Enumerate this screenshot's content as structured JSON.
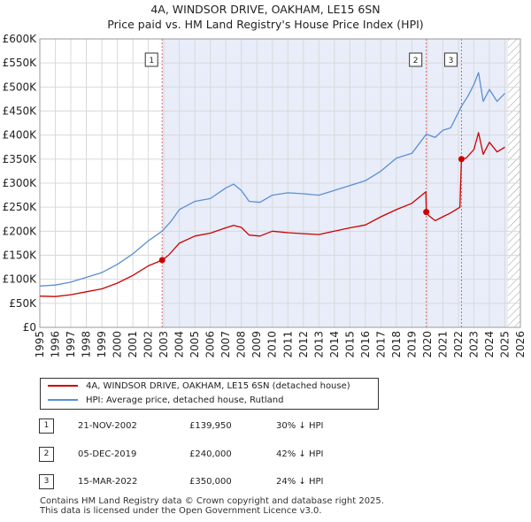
{
  "title": {
    "line1": "4A, WINDSOR DRIVE, OAKHAM, LE15 6SN",
    "line2": "Price paid vs. HM Land Registry's House Price Index (HPI)"
  },
  "colors": {
    "price_line": "#cc0000",
    "hpi_line": "#5b8fd4",
    "shade": "#e8edf9",
    "grid": "#d9d9d9",
    "hatch": "#999999",
    "sale_vline": "#dd6666"
  },
  "chart_data": {
    "type": "line",
    "title": "Price paid vs. HM Land Registry's House Price Index (HPI)",
    "xlabel": "",
    "ylabel": "",
    "xlim": [
      1995,
      2026
    ],
    "ylim": [
      0,
      600000
    ],
    "y_ticks": [
      0,
      50000,
      100000,
      150000,
      200000,
      250000,
      300000,
      350000,
      400000,
      450000,
      500000,
      550000,
      600000
    ],
    "y_tick_labels": [
      "£0",
      "£50K",
      "£100K",
      "£150K",
      "£200K",
      "£250K",
      "£300K",
      "£350K",
      "£400K",
      "£450K",
      "£500K",
      "£550K",
      "£600K"
    ],
    "x_ticks": [
      1995,
      1996,
      1997,
      1998,
      1999,
      2000,
      2001,
      2002,
      2003,
      2004,
      2005,
      2006,
      2007,
      2008,
      2009,
      2010,
      2011,
      2012,
      2013,
      2014,
      2015,
      2016,
      2017,
      2018,
      2019,
      2020,
      2021,
      2022,
      2023,
      2024,
      2025,
      2026
    ],
    "x_tick_labels": [
      "1995",
      "1996",
      "1997",
      "1998",
      "1999",
      "2000",
      "2001",
      "2002",
      "2003",
      "2004",
      "2005",
      "2006",
      "2007",
      "2008",
      "2009",
      "2010",
      "2011",
      "2012",
      "2013",
      "2014",
      "2015",
      "2016",
      "2017",
      "2018",
      "2019",
      "2020",
      "2021",
      "2022",
      "2023",
      "2024",
      "2025",
      "2026"
    ],
    "grid": true,
    "shaded_range": [
      2002.9,
      2025.2
    ],
    "hatched_range": [
      2025.2,
      2026
    ],
    "series": [
      {
        "name": "4A, WINDSOR DRIVE, OAKHAM, LE15 6SN (detached house)",
        "color": "#cc0000",
        "x": [
          1995.0,
          1996.0,
          1997.0,
          1998.0,
          1999.0,
          2000.0,
          2001.0,
          2002.0,
          2002.89,
          2003.3,
          2004.0,
          2005.0,
          2006.0,
          2007.0,
          2007.5,
          2008.0,
          2008.5,
          2009.2,
          2010.0,
          2011.0,
          2012.0,
          2013.0,
          2014.0,
          2015.0,
          2016.0,
          2017.0,
          2018.0,
          2019.0,
          2019.9,
          2019.93,
          2020.1,
          2020.5,
          2021.0,
          2021.5,
          2022.1,
          2022.2,
          2022.5,
          2023.0,
          2023.3,
          2023.6,
          2024.0,
          2024.5,
          2025.0
        ],
        "y": [
          65000,
          64000,
          68000,
          74000,
          80000,
          92000,
          108000,
          128000,
          139950,
          150000,
          175000,
          190000,
          196000,
          207000,
          212000,
          208000,
          192000,
          190000,
          200000,
          197000,
          195000,
          193000,
          200000,
          207000,
          213000,
          230000,
          245000,
          258000,
          282000,
          240000,
          232000,
          222000,
          230000,
          238000,
          250000,
          350000,
          352000,
          370000,
          405000,
          360000,
          385000,
          365000,
          375000
        ]
      },
      {
        "name": "HPI: Average price, detached house, Rutland",
        "color": "#5b8fd4",
        "x": [
          1995.0,
          1996.0,
          1997.0,
          1998.0,
          1999.0,
          2000.0,
          2001.0,
          2002.0,
          2002.89,
          2003.5,
          2004.0,
          2005.0,
          2006.0,
          2007.0,
          2007.5,
          2008.0,
          2008.5,
          2009.2,
          2010.0,
          2011.0,
          2012.0,
          2013.0,
          2014.0,
          2015.0,
          2016.0,
          2017.0,
          2018.0,
          2019.0,
          2019.93,
          2020.5,
          2021.0,
          2021.5,
          2022.2,
          2022.6,
          2023.0,
          2023.3,
          2023.6,
          2024.0,
          2024.5,
          2025.0
        ],
        "y": [
          86000,
          88000,
          94000,
          104000,
          114000,
          131000,
          153000,
          180000,
          200000,
          222000,
          245000,
          262000,
          268000,
          290000,
          298000,
          285000,
          262000,
          260000,
          275000,
          280000,
          278000,
          275000,
          285000,
          295000,
          305000,
          325000,
          352000,
          362000,
          402000,
          395000,
          410000,
          415000,
          460000,
          480000,
          505000,
          530000,
          470000,
          495000,
          470000,
          487000
        ]
      }
    ],
    "sale_markers": [
      {
        "label": "1",
        "x": 2002.89,
        "y": 139950
      },
      {
        "label": "2",
        "x": 2019.93,
        "y": 240000
      },
      {
        "label": "3",
        "x": 2022.2,
        "y": 350000
      }
    ]
  },
  "legend": {
    "price_label": "4A, WINDSOR DRIVE, OAKHAM, LE15 6SN (detached house)",
    "hpi_label": "HPI: Average price, detached house, Rutland"
  },
  "sales": [
    {
      "num": "1",
      "date": "21-NOV-2002",
      "price": "£139,950",
      "hpi": "30% ↓ HPI"
    },
    {
      "num": "2",
      "date": "05-DEC-2019",
      "price": "£240,000",
      "hpi": "42% ↓ HPI"
    },
    {
      "num": "3",
      "date": "15-MAR-2022",
      "price": "£350,000",
      "hpi": "24% ↓ HPI"
    }
  ],
  "footer": {
    "line1": "Contains HM Land Registry data © Crown copyright and database right 2025.",
    "line2": "This data is licensed under the Open Government Licence v3.0."
  }
}
